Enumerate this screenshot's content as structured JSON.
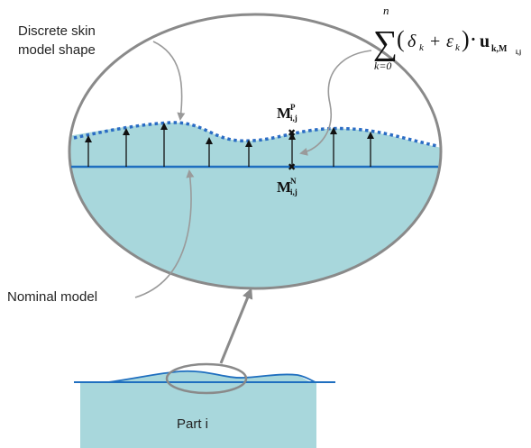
{
  "labels": {
    "discrete_line1": "Discrete skin",
    "discrete_line2": "model shape",
    "nominal": "Nominal model",
    "part": "Part i"
  },
  "formula": {
    "sum_symbol": "∑",
    "upper_limit": "n",
    "lower_limit": "k=0",
    "body_open": "(",
    "delta": "δ",
    "delta_sub": "k",
    "plus": "+",
    "epsilon": "ε",
    "epsilon_sub": "k",
    "body_close": ")·",
    "vector": "u",
    "vector_sub": "k,M",
    "vector_subsub": "i,j"
  },
  "points": {
    "p_main": "M",
    "p_sup": "P",
    "p_sub": "i,j",
    "n_main": "M",
    "n_sup": "N",
    "n_sub": "i,j"
  },
  "colors": {
    "fill": "#a8d7dc",
    "nominal_line": "#1f6fbf",
    "skin_dots": "#2a6cc4",
    "outline": "#8a8a8a",
    "arrow": "#111111"
  }
}
